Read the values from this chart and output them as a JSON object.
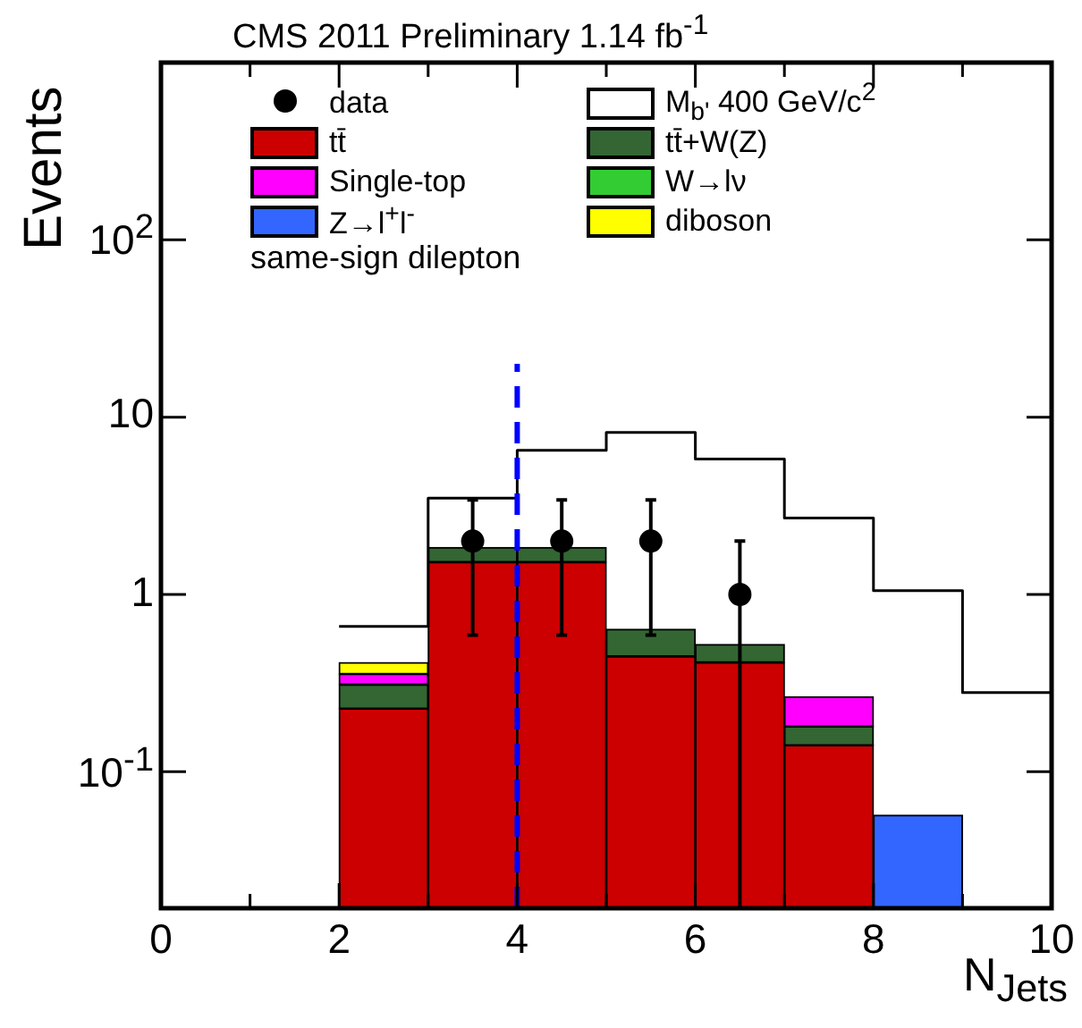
{
  "chart_data": {
    "type": "bar",
    "title": "CMS 2011 Preliminary 1.14 fb$^{-1}$",
    "xlabel": "N$_{Jets}$",
    "ylabel": "Events",
    "annotations": [
      "same-sign dilepton"
    ],
    "x": [
      2.5,
      3.5,
      4.5,
      5.5,
      6.5,
      7.5,
      8.5
    ],
    "stacked": true,
    "log": "y",
    "grid": false,
    "legend": "top",
    "xlim": [
      0,
      10
    ],
    "xticks": [
      0,
      {
        "value": 1,
        "label": null
      },
      2,
      {
        "value": 3,
        "label": null
      },
      4,
      {
        "value": 5,
        "label": null
      },
      6,
      {
        "value": 7,
        "label": null
      },
      8,
      {
        "value": 9,
        "label": null
      },
      10
    ],
    "ylim": [
      0.017,
      1000
    ],
    "yticks": [
      {
        "value": 0.1,
        "label": "10$^{-1}$"
      },
      1,
      10,
      {
        "value": 100,
        "label": "10$^{2}$"
      }
    ],
    "series": [
      {
        "name": "data",
        "type": "scatter",
        "marker": "circle",
        "color": "#000000",
        "x": [
          3.5,
          4.5,
          5.5,
          6.5
        ],
        "values": [
          2,
          2,
          2,
          1
        ],
        "errors": [
          1.41,
          1.41,
          1.41,
          [
            0.017,
            2
          ]
        ]
      },
      {
        "name": "M$_{b'}$ 400 GeV/c$^{2}$",
        "type": "step",
        "color": "#000000",
        "x": [
          2,
          3,
          4,
          5,
          6,
          7,
          8,
          9,
          10
        ],
        "values": [
          0.66,
          3.49,
          6.5,
          8.2,
          5.8,
          2.7,
          1.05,
          0.28,
          0.28
        ]
      },
      {
        "name": "tt̄",
        "color": "#cc0000",
        "values": [
          0.227,
          1.52,
          1.52,
          0.447,
          0.413,
          0.141,
          null
        ]
      },
      {
        "name": "tt̄+W(Z)",
        "color": "#336633",
        "values": [
          0.083,
          0.32,
          0.32,
          0.19,
          0.11,
          0.039,
          null
        ]
      },
      {
        "name": "Single-top",
        "color": "#ff00ff",
        "values": [
          0.046,
          null,
          null,
          null,
          null,
          0.085,
          null
        ]
      },
      {
        "name": "W→lν",
        "color": "#33cc33",
        "values": [
          null,
          null,
          null,
          null,
          null,
          null,
          null
        ]
      },
      {
        "name": "Z→l$^{+}$l$^{-}$",
        "color": "#3366ff",
        "values": [
          null,
          null,
          null,
          null,
          null,
          null,
          0.057
        ]
      },
      {
        "name": "diboson",
        "color": "#ffff00",
        "values": [
          0.057,
          null,
          null,
          null,
          null,
          null,
          null
        ]
      },
      {
        "type": "line",
        "line_style": "dashed",
        "color": "#0000ff",
        "x": [
          4,
          4
        ],
        "values": [
          0.017,
          20
        ]
      }
    ]
  }
}
